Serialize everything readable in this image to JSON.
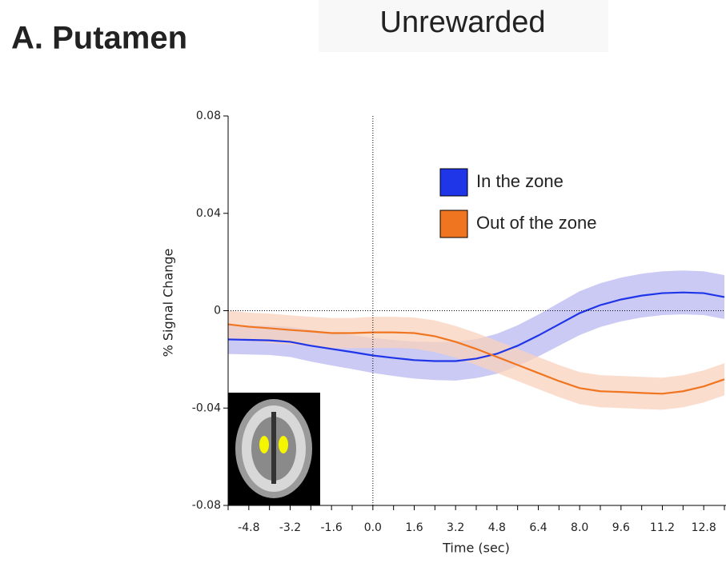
{
  "chart_data": {
    "type": "line",
    "title": "A. Putamen",
    "subtitle": "Unrewarded",
    "xlabel": "Time (sec)",
    "ylabel": "% Signal Change",
    "x": [
      -5.6,
      -4.8,
      -4.0,
      -3.2,
      -2.4,
      -1.6,
      -0.8,
      0,
      0.8,
      1.6,
      2.4,
      3.2,
      4.0,
      4.8,
      5.6,
      6.4,
      7.2,
      8.0,
      8.8,
      9.6,
      10.4,
      11.2,
      12.0,
      12.8,
      13.6
    ],
    "series": [
      {
        "name": "In the zone",
        "color": "#1f35e8",
        "band_color": "#b9b8f2",
        "values": [
          -0.0118,
          -0.012,
          -0.0122,
          -0.0128,
          -0.0144,
          -0.0157,
          -0.017,
          -0.0184,
          -0.0194,
          -0.0203,
          -0.0207,
          -0.0207,
          -0.0197,
          -0.0177,
          -0.0144,
          -0.0102,
          -0.0056,
          -0.001,
          0.0023,
          0.0046,
          0.0062,
          0.0072,
          0.0075,
          0.0072,
          0.0056
        ],
        "errors": [
          0.006,
          0.006,
          0.006,
          0.0062,
          0.0065,
          0.0068,
          0.007,
          0.0072,
          0.0074,
          0.0076,
          0.0078,
          0.008,
          0.008,
          0.0082,
          0.0084,
          0.0086,
          0.0088,
          0.009,
          0.009,
          0.009,
          0.009,
          0.009,
          0.009,
          0.009,
          0.009
        ]
      },
      {
        "name": "Out of the zone",
        "color": "#f07520",
        "band_color": "#f9d2bc",
        "values": [
          -0.0056,
          -0.0066,
          -0.0072,
          -0.0079,
          -0.0085,
          -0.0092,
          -0.0092,
          -0.0089,
          -0.0089,
          -0.0092,
          -0.0105,
          -0.0128,
          -0.0157,
          -0.019,
          -0.0223,
          -0.0256,
          -0.0289,
          -0.0318,
          -0.0331,
          -0.0334,
          -0.0338,
          -0.0341,
          -0.0331,
          -0.0311,
          -0.0282
        ],
        "errors": [
          0.0056,
          0.0058,
          0.006,
          0.006,
          0.006,
          0.0062,
          0.0062,
          0.0064,
          0.0064,
          0.0064,
          0.0065,
          0.0065,
          0.0066,
          0.0066,
          0.0066,
          0.0066,
          0.0066,
          0.0066,
          0.0066,
          0.0066,
          0.0066,
          0.0066,
          0.0066,
          0.0066,
          0.0066
        ]
      }
    ],
    "xlim": [
      -5.6,
      13.6
    ],
    "ylim": [
      -0.08,
      0.08
    ],
    "xticks": [
      -4.8,
      -3.2,
      -1.6,
      {
        "value": 0,
        "label": "0.0"
      },
      1.6,
      3.2,
      4.8,
      6.4,
      {
        "value": 8,
        "label": "8.0"
      },
      9.6,
      11.2,
      12.8
    ],
    "xminor_ticks": [
      -5.6,
      -4.0,
      -2.4,
      -0.8,
      0.8,
      2.4,
      4.0,
      5.6,
      7.2,
      8.8,
      10.4,
      12.0,
      13.6
    ],
    "yticks": [
      -0.08,
      -0.04,
      0,
      0.04,
      0.08
    ],
    "reference_lines": {
      "x": 0,
      "y": 0
    },
    "grid": false,
    "legend": "upper right"
  }
}
